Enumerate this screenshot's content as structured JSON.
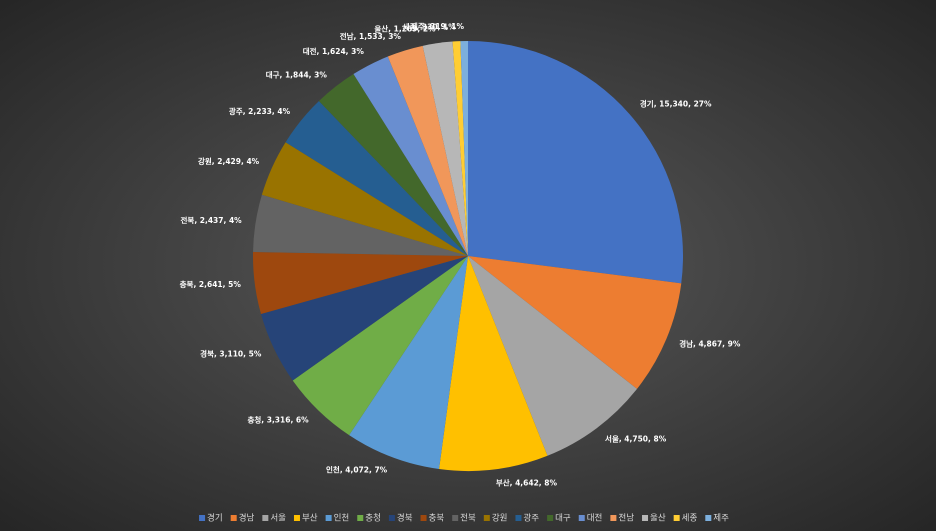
{
  "chart_data": {
    "type": "pie",
    "categories": [
      "경기",
      "경남",
      "서울",
      "부산",
      "인천",
      "충청",
      "경북",
      "충북",
      "전북",
      "강원",
      "광주",
      "대구",
      "대전",
      "전남",
      "울산",
      "세종",
      "제주"
    ],
    "values": [
      15340,
      4867,
      4750,
      4642,
      4072,
      3316,
      3110,
      2641,
      2437,
      2429,
      2233,
      1844,
      1624,
      1533,
      1269,
      330,
      319
    ],
    "value_labels": [
      "경기, 15,340, 27%",
      "경남, 4,867, 9%",
      "서울, 4,750, 8%",
      "부산, 4,642, 8%",
      "인천, 4,072, 7%",
      "충청, 3,316, 6%",
      "경북, 3,110, 5%",
      "충북, 2,641, 5%",
      "전북, 2,437, 4%",
      "강원, 2,429, 4%",
      "광주, 2,233, 4%",
      "대구, 1,844, 3%",
      "대전, 1,624, 3%",
      "전남, 1,533, 3%",
      "울산, 1,269, 2%",
      "세종, 330, 1%",
      "제주, 319, 1%"
    ],
    "colors": [
      "#4472c4",
      "#ed7d31",
      "#a5a5a5",
      "#ffc000",
      "#5b9bd5",
      "#70ad47",
      "#264478",
      "#9e480e",
      "#636363",
      "#997300",
      "#255e91",
      "#43682b",
      "#698ed0",
      "#f1975a",
      "#b7b7b7",
      "#ffcd33",
      "#7cafdd"
    ],
    "legend": "bottom"
  }
}
